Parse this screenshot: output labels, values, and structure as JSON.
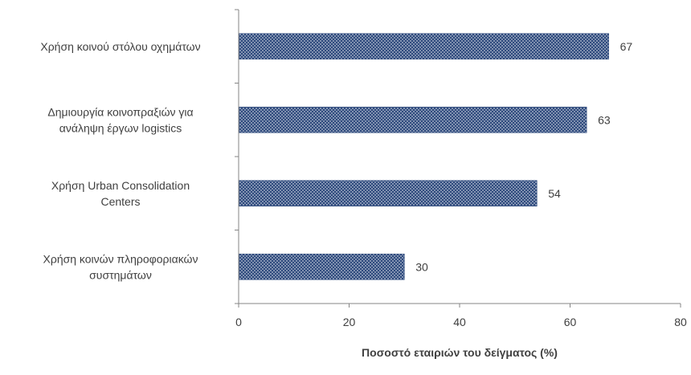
{
  "chart_data": {
    "type": "bar",
    "orientation": "horizontal",
    "categories": [
      [
        "Χρήση κοινού στόλου οχημάτων"
      ],
      [
        "Δημιουργία κοινοπραξιών για",
        "ανάληψη έργων logistics"
      ],
      [
        "Χρήση Urban Consolidation",
        "Centers"
      ],
      [
        "Χρήση κοινών πληροφοριακών",
        "συστημάτων"
      ]
    ],
    "values": [
      67,
      63,
      54,
      30
    ],
    "title": "",
    "xlabel": "Ποσοστό εταιριών του δείγματος (%)",
    "ylabel": "",
    "xlim": [
      0,
      80
    ],
    "xticks": [
      0,
      20,
      40,
      60,
      80
    ],
    "grid": false,
    "legend": "none",
    "data_labels": true,
    "colors": {
      "bar_fill": "#2e4a7d",
      "bar_dots": "#ffffff",
      "axis": "#868686",
      "text": "#404040"
    }
  }
}
